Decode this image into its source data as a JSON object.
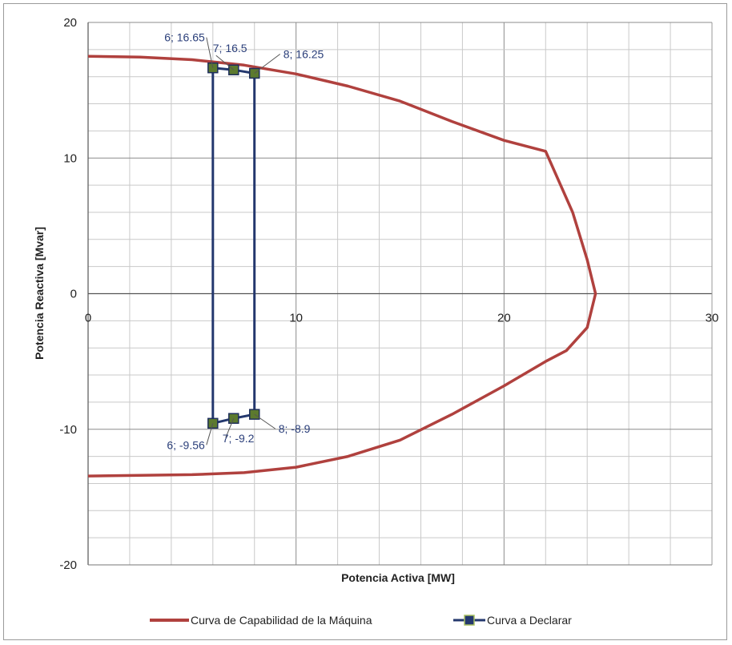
{
  "chart_data": {
    "type": "line",
    "title": "",
    "xlabel": "Potencia Activa [MW]",
    "ylabel": "Potencia Reactiva [Mvar]",
    "xlim": [
      0,
      30
    ],
    "ylim": [
      -20,
      20
    ],
    "x_ticks": [
      "0",
      "10",
      "20",
      "30"
    ],
    "y_ticks": [
      "20",
      "10",
      "0",
      "-10",
      "-20"
    ],
    "grid": true,
    "legend_position": "bottom",
    "series": [
      {
        "name": "Curva de Capabilidad de la Máquina",
        "color": "#b0413e",
        "x": [
          0,
          2.5,
          5,
          7.5,
          10,
          12.5,
          15,
          17.5,
          20,
          22,
          23.3,
          24,
          24.4,
          24,
          23,
          22,
          20,
          17.5,
          15,
          12.5,
          10,
          7.5,
          5,
          2.5,
          0
        ],
        "y": [
          17.5,
          17.45,
          17.25,
          16.85,
          16.2,
          15.3,
          14.2,
          12.7,
          11.3,
          10.5,
          6,
          2.5,
          0,
          -2.5,
          -4.2,
          -5,
          -6.8,
          -8.9,
          -10.8,
          -12,
          -12.8,
          -13.2,
          -13.35,
          -13.4,
          -13.45
        ]
      },
      {
        "name": "Curva a Declarar",
        "color": "#24386e",
        "marker_color": "#5c7a2e",
        "segments": [
          {
            "x": [
              6,
              6
            ],
            "y": [
              16.65,
              -9.56
            ]
          },
          {
            "x": [
              8,
              8
            ],
            "y": [
              16.25,
              -8.9
            ]
          },
          {
            "x": [
              6,
              7,
              8
            ],
            "y": [
              16.65,
              16.5,
              16.25
            ]
          },
          {
            "x": [
              6,
              7,
              8
            ],
            "y": [
              -9.56,
              -9.2,
              -8.9
            ]
          }
        ],
        "points": [
          {
            "x": 6,
            "y": 16.65,
            "label": "6; 16.65"
          },
          {
            "x": 7,
            "y": 16.5,
            "label": "7; 16.5"
          },
          {
            "x": 8,
            "y": 16.25,
            "label": "8; 16.25"
          },
          {
            "x": 6,
            "y": -9.56,
            "label": "6; -9.56"
          },
          {
            "x": 7,
            "y": -9.2,
            "label": "7; -9.2"
          },
          {
            "x": 8,
            "y": -8.9,
            "label": "8; -8.9"
          }
        ]
      }
    ]
  }
}
